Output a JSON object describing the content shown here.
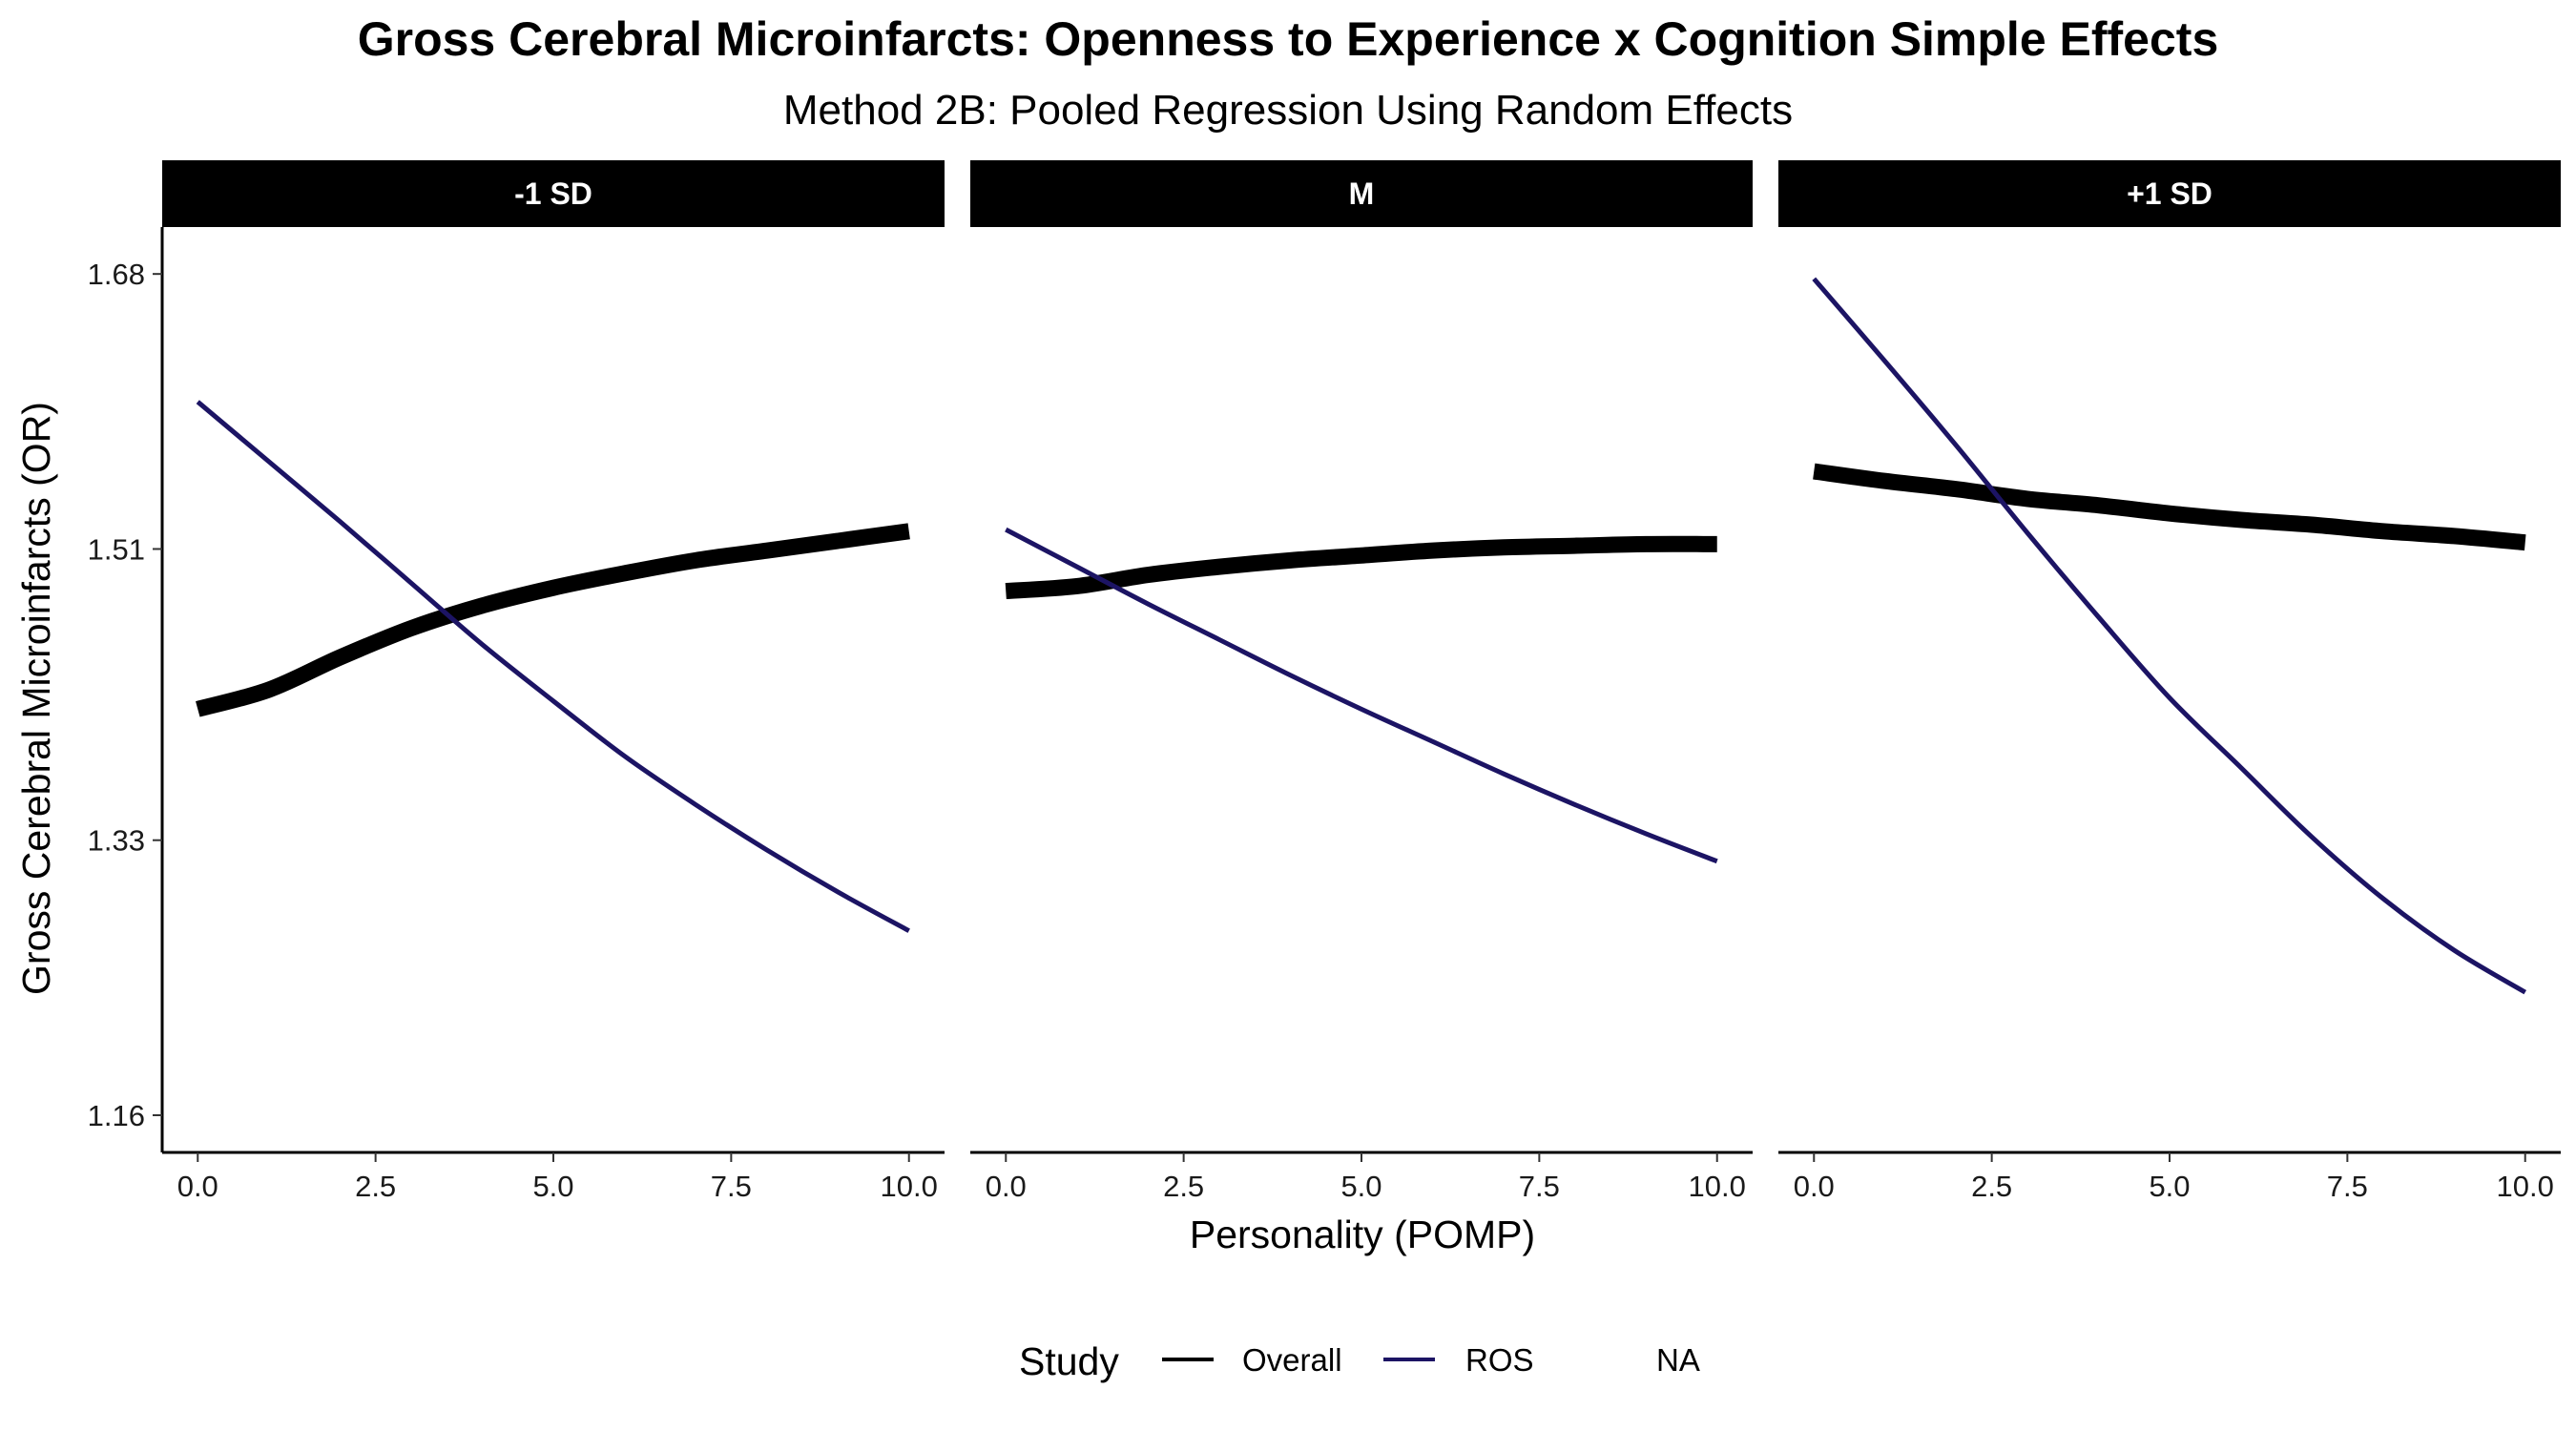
{
  "chart_data": {
    "type": "line",
    "title": "Gross Cerebral Microinfarcts: Openness to Experience x Cognition Simple Effects",
    "subtitle": "Method 2B: Pooled Regression Using Random Effects",
    "xlabel": "Personality (POMP)",
    "ylabel": "Gross Cerebral Microinfarcts (OR)",
    "xlim": [
      -0.5,
      10.5
    ],
    "ylim": [
      1.137,
      1.709
    ],
    "x_ticks": [
      "0.0",
      "2.5",
      "5.0",
      "7.5",
      "10.0"
    ],
    "y_ticks": [
      "1.16",
      "1.33",
      "1.51",
      "1.68"
    ],
    "grid": false,
    "legend": {
      "title": "Study",
      "position": "bottom",
      "entries": [
        "Overall",
        "ROS",
        "NA"
      ]
    },
    "series_styles": {
      "Overall": {
        "color": "#000000",
        "thickness": "thick"
      },
      "ROS": {
        "color": "#1c1464",
        "thickness": "thin"
      }
    },
    "panels": [
      {
        "label": "-1 SD",
        "series": [
          {
            "name": "Overall",
            "x": [
              0,
              1,
              2,
              3,
              4,
              5,
              6,
              7,
              8,
              9,
              10
            ],
            "y": [
              1.411,
              1.423,
              1.443,
              1.461,
              1.475,
              1.486,
              1.495,
              1.503,
              1.509,
              1.515,
              1.521
            ]
          },
          {
            "name": "ROS",
            "x": [
              0,
              1,
              2,
              3,
              4,
              5,
              6,
              7,
              8,
              9,
              10
            ],
            "y": [
              1.601,
              1.564,
              1.527,
              1.489,
              1.451,
              1.416,
              1.382,
              1.352,
              1.324,
              1.298,
              1.274
            ]
          }
        ]
      },
      {
        "label": "M",
        "series": [
          {
            "name": "Overall",
            "x": [
              0,
              1,
              2,
              3,
              4,
              5,
              6,
              7,
              8,
              9,
              10
            ],
            "y": [
              1.484,
              1.487,
              1.494,
              1.499,
              1.503,
              1.506,
              1.509,
              1.511,
              1.512,
              1.513,
              1.513
            ]
          },
          {
            "name": "ROS",
            "x": [
              0,
              1,
              2,
              3,
              4,
              5,
              6,
              7,
              8,
              9,
              10
            ],
            "y": [
              1.522,
              1.499,
              1.476,
              1.454,
              1.432,
              1.411,
              1.391,
              1.371,
              1.352,
              1.334,
              1.317
            ]
          }
        ]
      },
      {
        "label": "+1 SD",
        "series": [
          {
            "name": "Overall",
            "x": [
              0,
              1,
              2,
              3,
              4,
              5,
              6,
              7,
              8,
              9,
              10
            ],
            "y": [
              1.558,
              1.552,
              1.547,
              1.541,
              1.537,
              1.532,
              1.528,
              1.525,
              1.521,
              1.518,
              1.514
            ]
          },
          {
            "name": "ROS",
            "x": [
              0,
              1,
              2,
              3,
              4,
              5,
              6,
              7,
              8,
              9,
              10
            ],
            "y": [
              1.677,
              1.626,
              1.574,
              1.52,
              1.468,
              1.418,
              1.375,
              1.332,
              1.294,
              1.262,
              1.236
            ]
          }
        ]
      }
    ]
  }
}
